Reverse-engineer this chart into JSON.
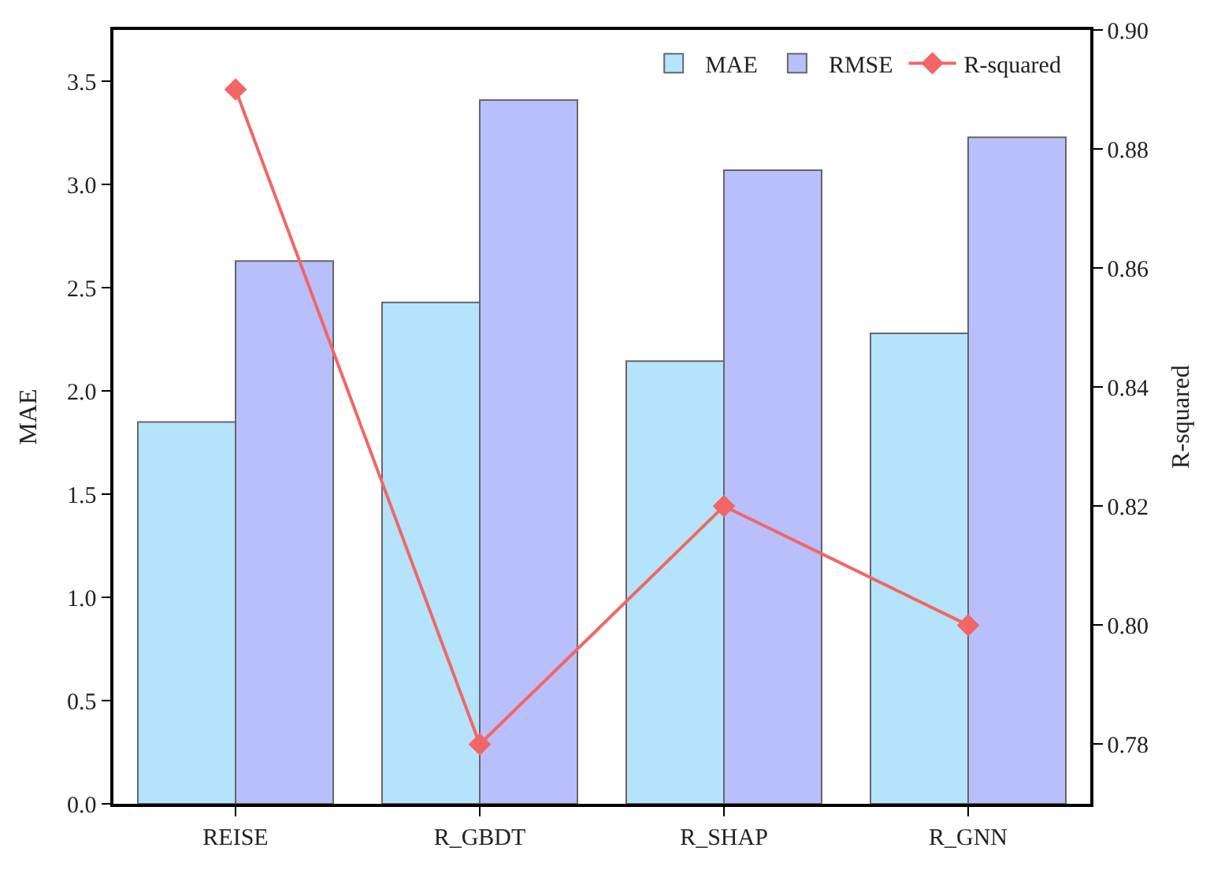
{
  "chart_data": {
    "type": "bar",
    "categories": [
      "REISE",
      "R_GBDT",
      "R_SHAP",
      "R_GNN"
    ],
    "series": [
      {
        "name": "MAE",
        "color": "#b5e3fb",
        "values": [
          1.85,
          2.43,
          2.145,
          2.28
        ]
      },
      {
        "name": "RMSE",
        "color": "#b8bffb",
        "values": [
          2.63,
          3.41,
          3.07,
          3.23
        ]
      },
      {
        "name": "R-squared",
        "type": "line",
        "axis": "y2",
        "color": "#f26666",
        "marker": "diamond",
        "values": [
          0.89,
          0.78,
          0.82,
          0.8
        ]
      }
    ],
    "ylabel": "MAE",
    "y2label": "R-squared",
    "ylim": [
      0,
      3.75
    ],
    "yticks": [
      {
        "value": 0,
        "label": "0.0"
      },
      0.5,
      {
        "value": 1,
        "label": "1.0"
      },
      1.5,
      {
        "value": 2,
        "label": "2.0"
      },
      2.5,
      {
        "value": 3,
        "label": "3.0"
      },
      3.5
    ],
    "y2lim": [
      0.77,
      0.9
    ],
    "y2ticks": [
      0.78,
      {
        "value": 0.8,
        "label": "0.80"
      },
      0.82,
      0.84,
      0.86,
      0.88,
      {
        "value": 0.9,
        "label": "0.90"
      }
    ],
    "legend": "top right"
  }
}
